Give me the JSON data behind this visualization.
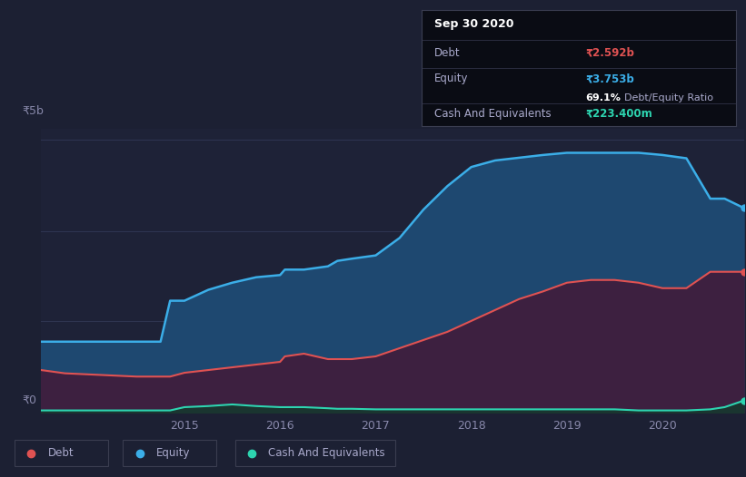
{
  "bg_color": "#1c2033",
  "plot_bg_color": "#1e2237",
  "title": "Sep 30 2020",
  "debt_label": "Debt",
  "equity_label": "Equity",
  "cash_label": "Cash And Equivalents",
  "debt_value": "₹2.592b",
  "equity_value": "₹3.753b",
  "ratio_label": "69.1%",
  "ratio_suffix": " Debt/Equity Ratio",
  "cash_value": "₹223.400m",
  "y_label_top": "₹5b",
  "y_label_bottom": "₹0",
  "x_ticks": [
    2015,
    2016,
    2017,
    2018,
    2019,
    2020
  ],
  "debt_color": "#e05252",
  "equity_color": "#3baee8",
  "cash_color": "#2dd4b0",
  "equity_fill_color": "#1e4870",
  "debt_fill_color": "#3d2040",
  "cash_fill_color": "#1a3530",
  "grid_color": "#2e3450",
  "tooltip_bg": "#0a0c14",
  "tooltip_border": "#3a3d50",
  "legend_border_color": "#3a3d50",
  "tick_color": "#8888aa",
  "x": [
    2013.5,
    2013.75,
    2014.0,
    2014.25,
    2014.5,
    2014.75,
    2014.85,
    2015.0,
    2015.25,
    2015.5,
    2015.75,
    2016.0,
    2016.05,
    2016.25,
    2016.5,
    2016.6,
    2016.75,
    2017.0,
    2017.25,
    2017.5,
    2017.75,
    2018.0,
    2018.25,
    2018.5,
    2018.75,
    2019.0,
    2019.25,
    2019.5,
    2019.75,
    2020.0,
    2020.25,
    2020.5,
    2020.65,
    2020.85
  ],
  "equity": [
    1.3,
    1.3,
    1.3,
    1.3,
    1.3,
    1.3,
    2.05,
    2.05,
    2.25,
    2.38,
    2.48,
    2.52,
    2.62,
    2.62,
    2.68,
    2.78,
    2.82,
    2.88,
    3.2,
    3.72,
    4.15,
    4.5,
    4.62,
    4.67,
    4.72,
    4.76,
    4.76,
    4.76,
    4.76,
    4.72,
    4.66,
    3.92,
    3.92,
    3.75
  ],
  "debt": [
    0.78,
    0.72,
    0.7,
    0.68,
    0.66,
    0.66,
    0.66,
    0.73,
    0.78,
    0.83,
    0.88,
    0.93,
    1.03,
    1.08,
    0.98,
    0.98,
    0.98,
    1.03,
    1.18,
    1.33,
    1.48,
    1.68,
    1.88,
    2.08,
    2.22,
    2.38,
    2.43,
    2.43,
    2.38,
    2.28,
    2.28,
    2.58,
    2.58,
    2.58
  ],
  "cash": [
    0.04,
    0.04,
    0.04,
    0.04,
    0.04,
    0.04,
    0.04,
    0.1,
    0.12,
    0.15,
    0.12,
    0.1,
    0.1,
    0.1,
    0.08,
    0.07,
    0.07,
    0.06,
    0.06,
    0.06,
    0.06,
    0.06,
    0.06,
    0.06,
    0.06,
    0.06,
    0.06,
    0.06,
    0.04,
    0.04,
    0.04,
    0.06,
    0.1,
    0.22
  ],
  "ylim": [
    0,
    5.2
  ],
  "xlim": [
    2013.5,
    2020.85
  ],
  "y5b_val": 5.0
}
